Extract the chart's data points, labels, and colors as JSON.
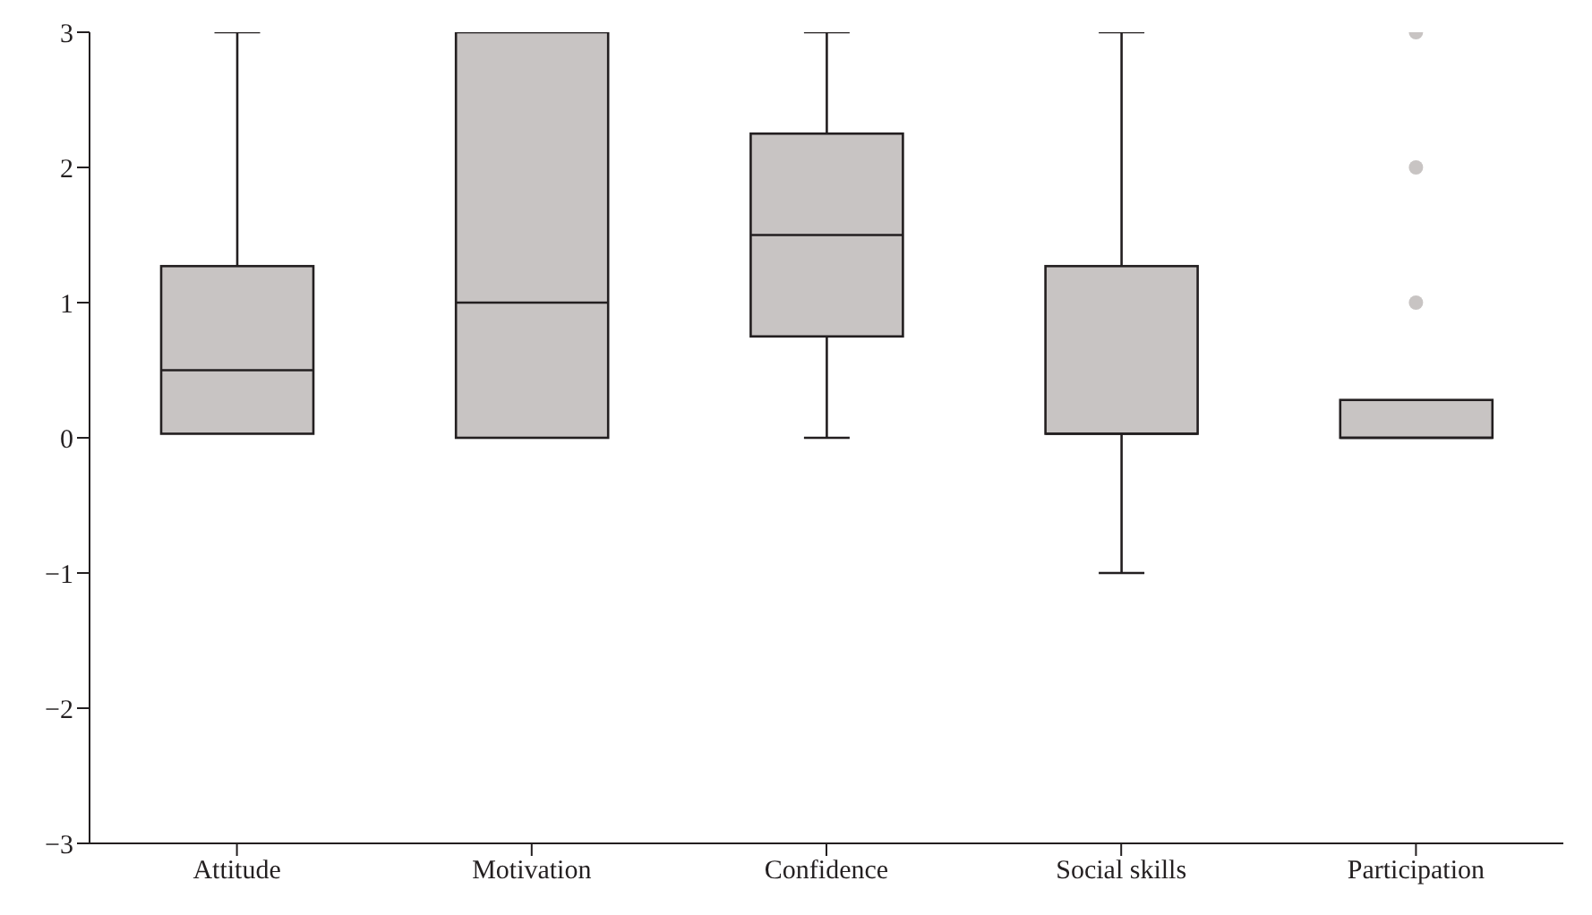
{
  "chart_data": {
    "type": "box",
    "categories": [
      "Attitude",
      "Motivation",
      "Confidence",
      "Social skills",
      "Participation"
    ],
    "boxes": [
      {
        "low": 0.03,
        "q1": 0.03,
        "median": 0.5,
        "q3": 1.27,
        "high": 3
      },
      {
        "low": 0,
        "q1": 0,
        "median": 1,
        "q3": 3,
        "high": 3
      },
      {
        "low": 0,
        "q1": 0.75,
        "median": 1.5,
        "q3": 2.25,
        "high": 3
      },
      {
        "low": -1,
        "q1": 0.03,
        "median": 0.03,
        "q3": 1.27,
        "high": 3
      },
      {
        "low": 0,
        "q1": 0,
        "median": 0,
        "q3": 0.28,
        "high": 0.28,
        "outliers": [
          1,
          2,
          3
        ]
      }
    ],
    "color": "#c8c4c3",
    "ylim": [
      -3,
      3
    ],
    "yticks": [
      -3,
      -2,
      -1,
      0,
      1,
      2,
      3
    ],
    "grid": false
  }
}
